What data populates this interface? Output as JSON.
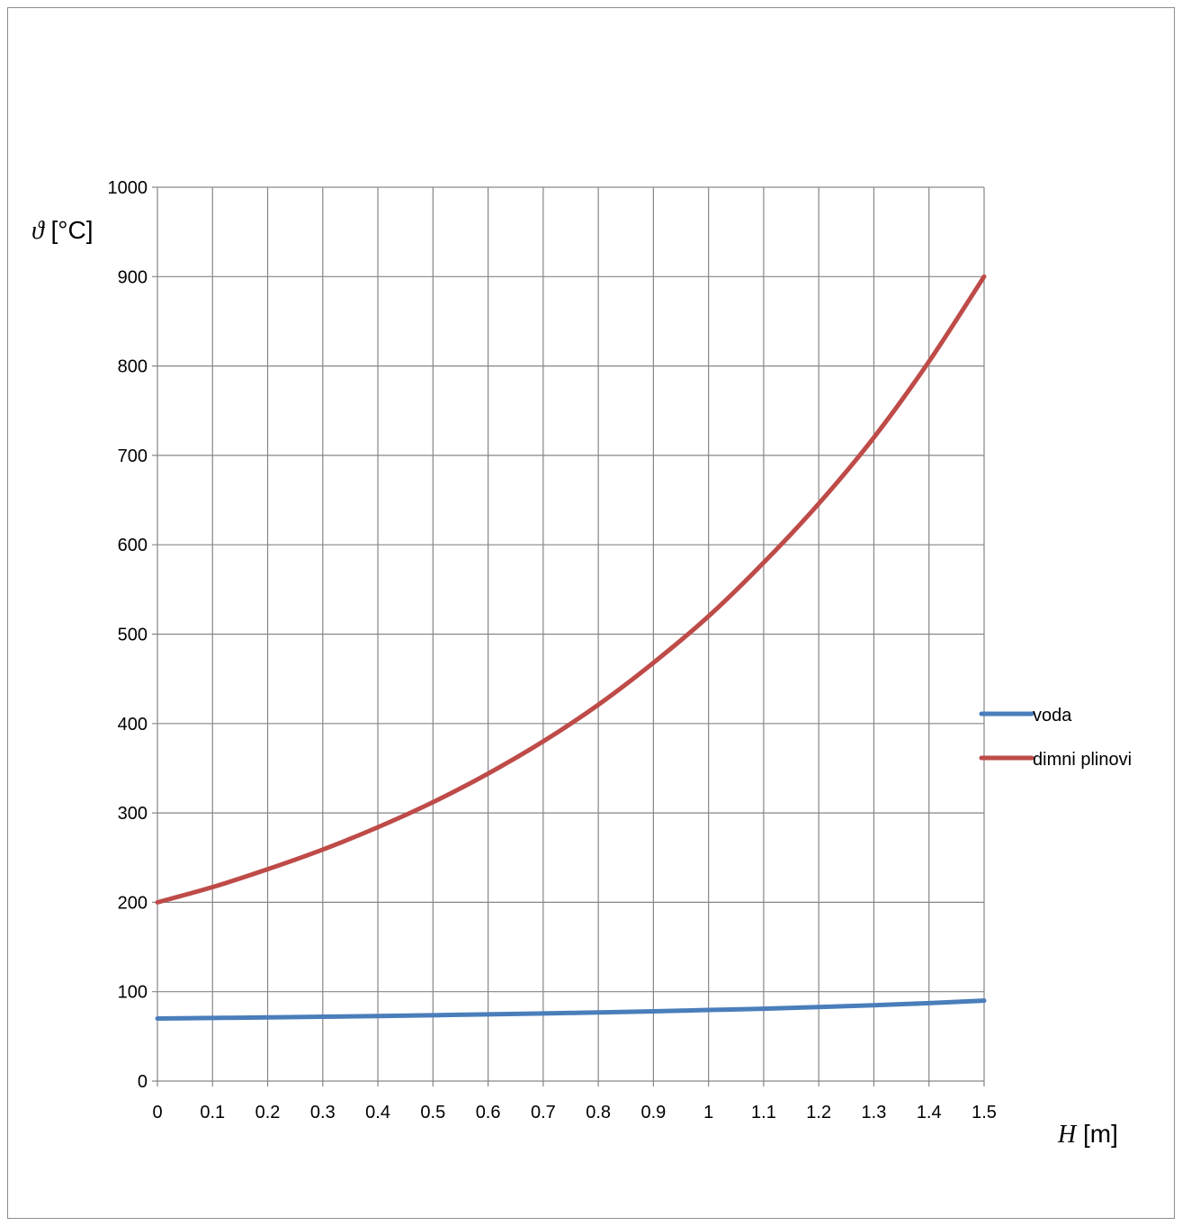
{
  "chart_data": {
    "type": "line",
    "title": "",
    "xlabel": {
      "symbol": "H",
      "unit": " [m]"
    },
    "ylabel": {
      "symbol": "ϑ",
      "unit": " [°C]"
    },
    "xlim": [
      0,
      1.5
    ],
    "ylim": [
      0,
      1000
    ],
    "xticks": [
      "0",
      "0.1",
      "0.2",
      "0.3",
      "0.4",
      "0.5",
      "0.6",
      "0.7",
      "0.8",
      "0.9",
      "1",
      "1.1",
      "1.2",
      "1.3",
      "1.4",
      "1.5"
    ],
    "yticks": [
      "0",
      "100",
      "200",
      "300",
      "400",
      "500",
      "600",
      "700",
      "800",
      "900",
      "1000"
    ],
    "grid": true,
    "legend_position": "right",
    "x": [
      0,
      0.1,
      0.2,
      0.3,
      0.4,
      0.5,
      0.6,
      0.7,
      0.8,
      0.9,
      1.0,
      1.1,
      1.2,
      1.3,
      1.4,
      1.5
    ],
    "series": [
      {
        "name": "voda",
        "color": "#4a7ebb",
        "values": [
          70,
          70.6,
          71.3,
          72.0,
          72.8,
          73.7,
          74.6,
          75.6,
          76.8,
          78.0,
          79.5,
          81.0,
          82.8,
          84.8,
          87.2,
          90
        ]
      },
      {
        "name": "dimni plinovi",
        "color": "#be4b48",
        "values": [
          200,
          217,
          237,
          259,
          284,
          312,
          344,
          380,
          421,
          468,
          520,
          580,
          646,
          720,
          805,
          900
        ]
      }
    ]
  }
}
